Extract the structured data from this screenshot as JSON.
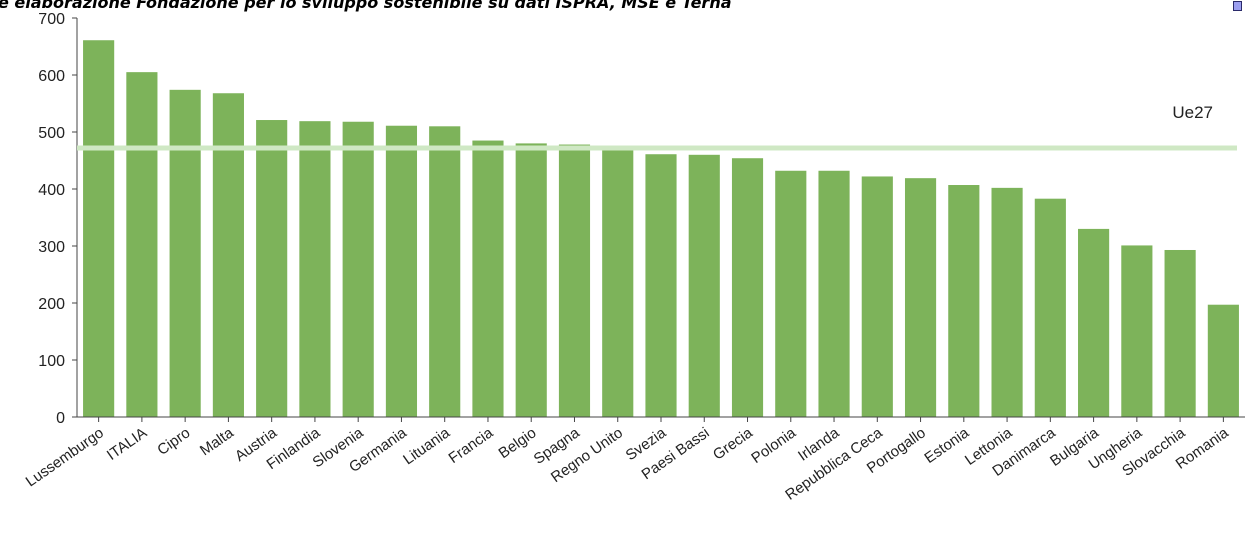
{
  "source_caption": "e elaborazione Fondazione per lo sviluppo sostenibile su dati ISPRA, MSE e Terna",
  "colors": {
    "bar": "#7db35a",
    "reference_line": "#cfe8c4",
    "legend_marker": "#9c9ff0",
    "axis": "#444444"
  },
  "chart_data": {
    "type": "bar",
    "title": "",
    "xlabel": "",
    "ylabel": "",
    "ylim": [
      0,
      700
    ],
    "yticks": [
      0,
      100,
      200,
      300,
      400,
      500,
      600,
      700
    ],
    "grid": false,
    "categories": [
      "Lussemburgo",
      "ITALIA",
      "Cipro",
      "Malta",
      "Austria",
      "Finlandia",
      "Slovenia",
      "Germania",
      "Lituania",
      "Francia",
      "Belgio",
      "Spagna",
      "Regno Unito",
      "Svezia",
      "Paesi Bassi",
      "Grecia",
      "Polonia",
      "Irlanda",
      "Repubblica Ceca",
      "Portogallo",
      "Estonia",
      "Lettonia",
      "Danimarca",
      "Bulgaria",
      "Ungheria",
      "Slovacchia",
      "Romania"
    ],
    "values": [
      661,
      605,
      574,
      568,
      521,
      519,
      518,
      511,
      510,
      485,
      480,
      478,
      468,
      461,
      460,
      454,
      432,
      432,
      422,
      419,
      407,
      402,
      383,
      330,
      301,
      293,
      197
    ],
    "reference_line": {
      "label": "Ue27",
      "value": 472
    }
  }
}
